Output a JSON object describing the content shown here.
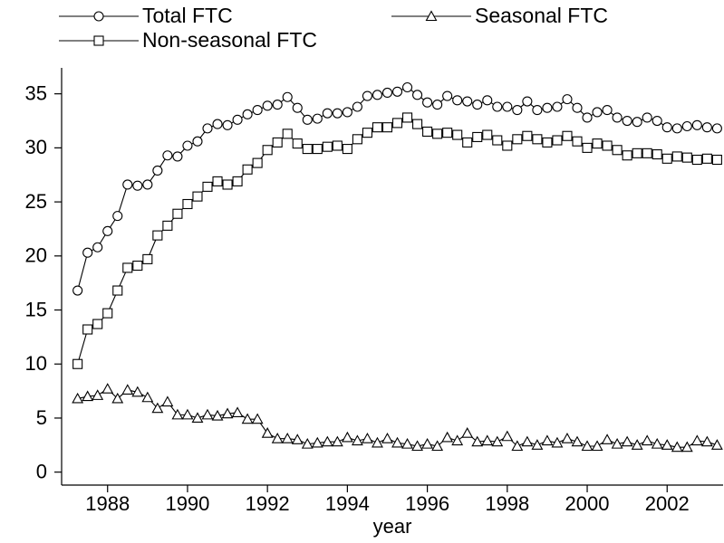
{
  "chart_data": {
    "type": "line",
    "x_label": "year",
    "x": [
      1987.25,
      1987.5,
      1987.75,
      1988,
      1988.25,
      1988.5,
      1988.75,
      1989,
      1989.25,
      1989.5,
      1989.75,
      1990,
      1990.25,
      1990.5,
      1990.75,
      1991,
      1991.25,
      1991.5,
      1991.75,
      1992,
      1992.25,
      1992.5,
      1992.75,
      1993,
      1993.25,
      1993.5,
      1993.75,
      1994,
      1994.25,
      1994.5,
      1994.75,
      1995,
      1995.25,
      1995.5,
      1995.75,
      1996,
      1996.25,
      1996.5,
      1996.75,
      1997,
      1997.25,
      1997.5,
      1997.75,
      1998,
      1998.25,
      1998.5,
      1998.75,
      1999,
      1999.25,
      1999.5,
      1999.75,
      2000,
      2000.25,
      2000.5,
      2000.75,
      2001,
      2001.25,
      2001.5,
      2001.75,
      2002,
      2002.25,
      2002.5,
      2002.75,
      2003,
      2003.25
    ],
    "series": [
      {
        "name": "Total FTC",
        "color": "#000000",
        "marker": "circle",
        "values": [
          16.8,
          20.3,
          20.8,
          22.3,
          23.7,
          26.6,
          26.5,
          26.6,
          27.9,
          29.3,
          29.2,
          30.2,
          30.6,
          31.8,
          32.2,
          32.1,
          32.6,
          33.1,
          33.5,
          33.9,
          34.0,
          34.7,
          33.7,
          32.6,
          32.7,
          33.2,
          33.2,
          33.3,
          33.8,
          34.8,
          34.9,
          35.1,
          35.2,
          35.6,
          34.9,
          34.2,
          34.0,
          34.8,
          34.4,
          34.3,
          34.0,
          34.4,
          33.8,
          33.8,
          33.5,
          34.3,
          33.5,
          33.7,
          33.8,
          34.5,
          33.7,
          32.8,
          33.3,
          33.5,
          32.8,
          32.5,
          32.4,
          32.8,
          32.5,
          31.9,
          31.8,
          32.0,
          32.1,
          31.9,
          31.8
        ]
      },
      {
        "name": "Seasonal FTC",
        "color": "#000000",
        "marker": "triangle",
        "values": [
          6.8,
          7.0,
          7.1,
          7.7,
          6.8,
          7.6,
          7.4,
          6.9,
          5.9,
          6.5,
          5.3,
          5.3,
          5.0,
          5.3,
          5.2,
          5.4,
          5.5,
          4.9,
          4.9,
          3.6,
          3.1,
          3.1,
          3.0,
          2.6,
          2.7,
          2.8,
          2.8,
          3.2,
          2.9,
          3.1,
          2.7,
          3.1,
          2.7,
          2.6,
          2.4,
          2.6,
          2.4,
          3.2,
          2.9,
          3.6,
          2.8,
          2.9,
          2.8,
          3.3,
          2.4,
          2.8,
          2.5,
          2.9,
          2.7,
          3.1,
          2.8,
          2.4,
          2.4,
          3.0,
          2.6,
          2.8,
          2.5,
          2.9,
          2.6,
          2.5,
          2.3,
          2.3,
          2.9,
          2.8,
          2.5
        ]
      },
      {
        "name": "Non-seasonal FTC",
        "color": "#000000",
        "marker": "square",
        "values": [
          10.0,
          13.2,
          13.7,
          14.7,
          16.8,
          18.9,
          19.1,
          19.7,
          21.9,
          22.8,
          23.9,
          24.8,
          25.5,
          26.4,
          26.9,
          26.6,
          26.9,
          28.0,
          28.6,
          29.8,
          30.5,
          31.3,
          30.4,
          29.9,
          29.9,
          30.1,
          30.2,
          29.9,
          30.8,
          31.4,
          31.9,
          31.9,
          32.3,
          32.8,
          32.2,
          31.5,
          31.3,
          31.4,
          31.2,
          30.5,
          31.0,
          31.2,
          30.7,
          30.2,
          30.8,
          31.1,
          30.8,
          30.5,
          30.7,
          31.1,
          30.6,
          30.0,
          30.4,
          30.2,
          29.8,
          29.3,
          29.5,
          29.5,
          29.4,
          29.0,
          29.2,
          29.1,
          28.9,
          29.0,
          28.9
        ]
      }
    ],
    "xlim": [
      1986.85,
      2003.4
    ],
    "ylim": [
      -1.2,
      37.4
    ],
    "xticks": [
      1988,
      1990,
      1992,
      1994,
      1996,
      1998,
      2000,
      2002
    ],
    "yticks": [
      0,
      5,
      10,
      15,
      20,
      25,
      30,
      35
    ],
    "grid": false,
    "legend": "top"
  }
}
